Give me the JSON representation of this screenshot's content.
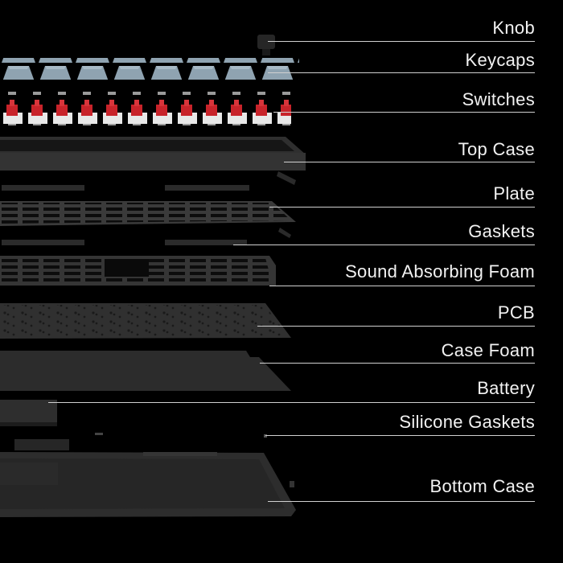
{
  "labels": [
    {
      "key": "knob",
      "text": "Knob"
    },
    {
      "key": "keycaps",
      "text": "Keycaps"
    },
    {
      "key": "switches",
      "text": "Switches"
    },
    {
      "key": "top-case",
      "text": "Top Case"
    },
    {
      "key": "plate",
      "text": "Plate"
    },
    {
      "key": "gaskets",
      "text": "Gaskets"
    },
    {
      "key": "sound-absorbing-foam",
      "text": "Sound Absorbing Foam"
    },
    {
      "key": "pcb",
      "text": "PCB"
    },
    {
      "key": "case-foam",
      "text": "Case Foam"
    },
    {
      "key": "battery",
      "text": "Battery"
    },
    {
      "key": "silicone-gaskets",
      "text": "Silicone Gaskets"
    },
    {
      "key": "bottom-case",
      "text": "Bottom Case"
    }
  ],
  "colors": {
    "background": "#000000",
    "text": "#f2f2f2",
    "leader_line": "#d0d0d0",
    "keycap": "#8fa3b1",
    "keycap_dark": "#5e6a72",
    "switch_stem": "#c8232a",
    "switch_housing": "#e8e8e8",
    "case": "#2e2e2e"
  }
}
